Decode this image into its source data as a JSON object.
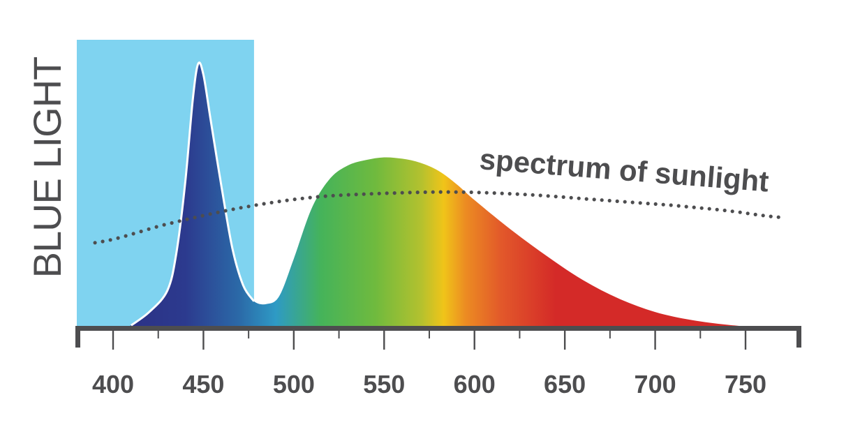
{
  "chart_data": {
    "type": "area",
    "title": "",
    "xlabel": "",
    "ylabel": "BLUE LIGHT",
    "xlim": [
      380,
      780
    ],
    "ylim": [
      0,
      1
    ],
    "xticks": [
      400,
      450,
      500,
      550,
      600,
      650,
      700,
      750
    ],
    "grid": false,
    "blue_light_band": [
      380,
      478
    ],
    "colors": {
      "band": "#7fd3f0",
      "axis": "#4d4d4f",
      "text": "#4d4d4f",
      "dots": "#4d4d4f",
      "curve_outline": "#ffffff"
    },
    "spectrum_gradient": [
      {
        "wl": 400,
        "color": "#2b2f83"
      },
      {
        "wl": 440,
        "color": "#2c3a8e"
      },
      {
        "wl": 470,
        "color": "#2b6aa8"
      },
      {
        "wl": 490,
        "color": "#2e9ac5"
      },
      {
        "wl": 515,
        "color": "#45b35a"
      },
      {
        "wl": 545,
        "color": "#6fba3e"
      },
      {
        "wl": 570,
        "color": "#b2c12f"
      },
      {
        "wl": 583,
        "color": "#f0c419"
      },
      {
        "wl": 595,
        "color": "#ec8c22"
      },
      {
        "wl": 615,
        "color": "#e2582a"
      },
      {
        "wl": 645,
        "color": "#d42a28"
      },
      {
        "wl": 760,
        "color": "#d42a28"
      }
    ],
    "series": [
      {
        "kind": "led_spectrum",
        "points": [
          [
            400,
            0.0
          ],
          [
            410,
            0.01
          ],
          [
            420,
            0.06
          ],
          [
            430,
            0.14
          ],
          [
            435,
            0.28
          ],
          [
            440,
            0.55
          ],
          [
            444,
            0.85
          ],
          [
            447,
            0.99
          ],
          [
            450,
            0.95
          ],
          [
            454,
            0.78
          ],
          [
            460,
            0.53
          ],
          [
            466,
            0.3
          ],
          [
            472,
            0.16
          ],
          [
            478,
            0.1
          ],
          [
            485,
            0.09
          ],
          [
            492,
            0.12
          ],
          [
            500,
            0.26
          ],
          [
            510,
            0.45
          ],
          [
            520,
            0.56
          ],
          [
            530,
            0.61
          ],
          [
            540,
            0.63
          ],
          [
            550,
            0.64
          ],
          [
            560,
            0.635
          ],
          [
            570,
            0.62
          ],
          [
            580,
            0.59
          ],
          [
            590,
            0.54
          ],
          [
            600,
            0.48
          ],
          [
            620,
            0.37
          ],
          [
            640,
            0.27
          ],
          [
            660,
            0.18
          ],
          [
            680,
            0.11
          ],
          [
            700,
            0.06
          ],
          [
            720,
            0.03
          ],
          [
            740,
            0.012
          ],
          [
            760,
            0.0
          ]
        ]
      },
      {
        "name": "spectrum of sunlight",
        "kind": "dotted",
        "points": [
          [
            390,
            0.32
          ],
          [
            430,
            0.39
          ],
          [
            470,
            0.45
          ],
          [
            510,
            0.49
          ],
          [
            550,
            0.505
          ],
          [
            590,
            0.51
          ],
          [
            630,
            0.5
          ],
          [
            670,
            0.48
          ],
          [
            710,
            0.46
          ],
          [
            740,
            0.44
          ],
          [
            770,
            0.415
          ]
        ]
      }
    ]
  }
}
